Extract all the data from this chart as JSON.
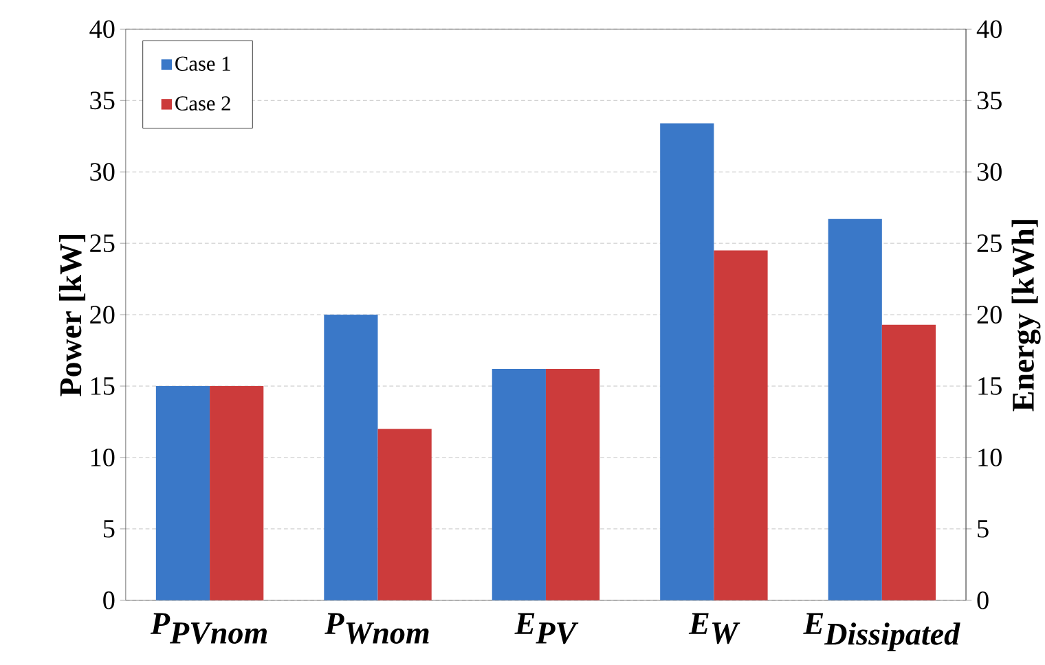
{
  "chart_data": {
    "type": "bar",
    "categories": [
      "\\textbf{\\textit{P}}_{\\textbf{\\textit{PVnom}}}",
      "\\textbf{\\textit{P}}_{\\textbf{\\textit{Wnom}}}",
      "\\textbf{\\textit{E}}_{\\textbf{\\textit{PV}}}",
      "\\textbf{\\textit{E}}_{\\textbf{\\textit{W}}}",
      "\\textbf{\\textit{E}}_{\\textbf{\\textit{Dissipated}}}"
    ],
    "series": [
      {
        "name": "Case 1",
        "color": "#3a78c8",
        "values": [
          15,
          20,
          16.2,
          33.4,
          26.7
        ]
      },
      {
        "name": "Case 2",
        "color": "#cc3b3b",
        "values": [
          15,
          12,
          16.2,
          24.5,
          19.3
        ]
      }
    ],
    "ylabel": "Power [kW]",
    "y2label": "Energy [kWh]",
    "ylim": [
      0,
      40
    ],
    "yticks": [
      0,
      5,
      10,
      15,
      20,
      25,
      30,
      35,
      40
    ],
    "y2lim": [
      0,
      40
    ],
    "y2ticks": [
      0,
      5,
      10,
      15,
      20,
      25,
      30,
      35,
      40
    ],
    "grid": "y",
    "legend": "top left"
  }
}
